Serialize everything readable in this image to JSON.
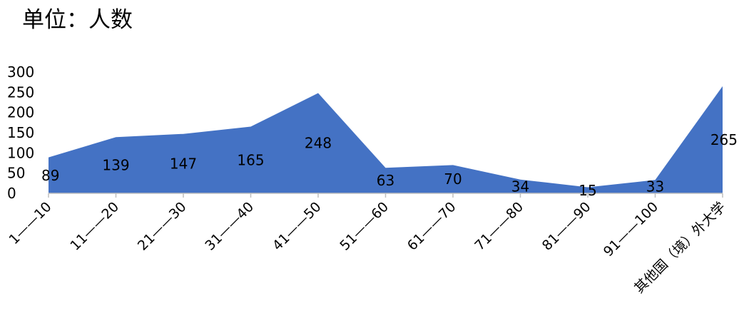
{
  "unit_label": "单位：人数",
  "chart_data": {
    "type": "area",
    "title": "",
    "xlabel": "",
    "ylabel": "",
    "categories": [
      "1——10",
      "11——20",
      "21——30",
      "31——40",
      "41——50",
      "51——60",
      "61——70",
      "71——80",
      "81——90",
      "91——100",
      "其他国（境）外大学"
    ],
    "values": [
      89,
      139,
      147,
      165,
      248,
      63,
      70,
      34,
      15,
      33,
      265
    ],
    "ylim": [
      0,
      300
    ],
    "yticks": [
      "0",
      "50",
      "100",
      "150",
      "200",
      "250",
      "300"
    ],
    "fill_color": "#4472C4",
    "axis_color": "#BFBFBF",
    "grid": false,
    "legend": "none",
    "data_labels": true
  }
}
